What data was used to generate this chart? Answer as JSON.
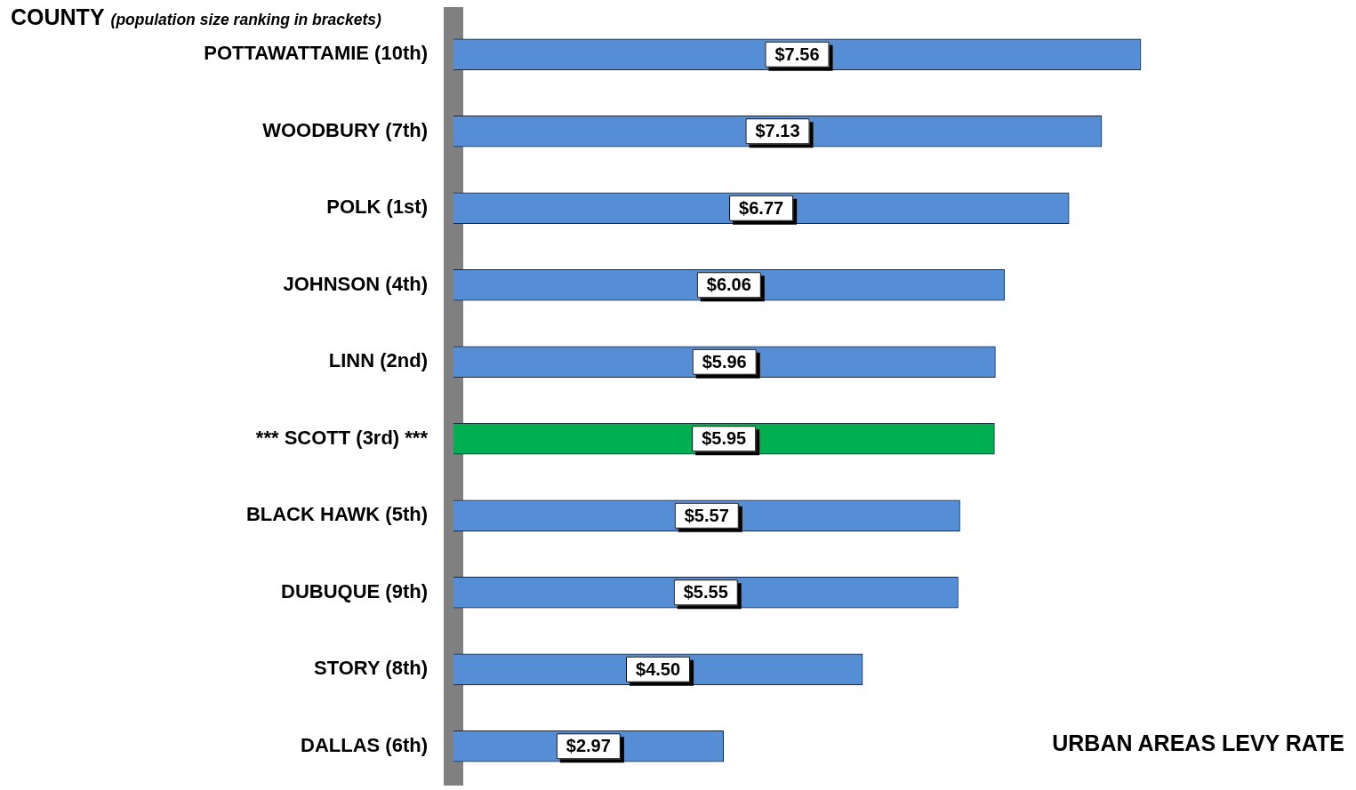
{
  "chart_data": {
    "type": "bar",
    "orientation": "horizontal",
    "title": "COUNTY",
    "subtitle": "(population size ranking in brackets)",
    "xlabel": "URBAN AREAS LEVY RATE",
    "categories": [
      "POTTAWATTAMIE (10th)",
      "WOODBURY (7th)",
      "POLK (1st)",
      "JOHNSON (4th)",
      "LINN (2nd)",
      "*** SCOTT (3rd) ***",
      "BLACK HAWK (5th)",
      "DUBUQUE (9th)",
      "STORY (8th)",
      "DALLAS (6th)"
    ],
    "values": [
      7.56,
      7.13,
      6.77,
      6.06,
      5.96,
      5.95,
      5.57,
      5.55,
      4.5,
      2.97
    ],
    "value_labels": [
      "$7.56",
      "$7.13",
      "$6.77",
      "$6.06",
      "$5.96",
      "$5.95",
      "$5.57",
      "$5.55",
      "$4.50",
      "$2.97"
    ],
    "colors": [
      "#558ed5",
      "#558ed5",
      "#558ed5",
      "#558ed5",
      "#558ed5",
      "#00b050",
      "#558ed5",
      "#558ed5",
      "#558ed5",
      "#558ed5"
    ],
    "tick_labels": "y"
  }
}
